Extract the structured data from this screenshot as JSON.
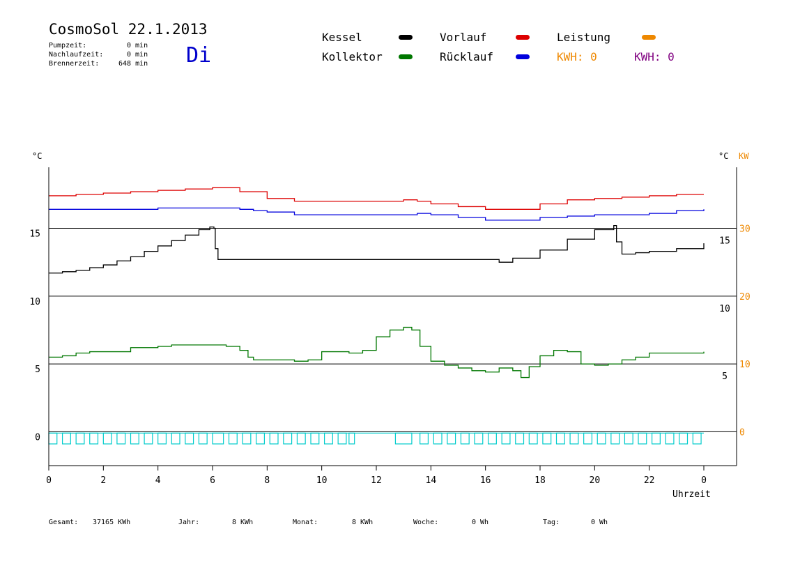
{
  "header": {
    "title": "CosmoSol 22.1.2013",
    "day": "Di",
    "stats": [
      {
        "label": "Pumpzeit:",
        "value": "0 min"
      },
      {
        "label": "Nachlaufzeit:",
        "value": "0 min"
      },
      {
        "label": "Brennerzeit:",
        "value": "648 min"
      }
    ]
  },
  "legend": {
    "kessel": "Kessel",
    "kollektor": "Kollektor",
    "vorlauf": "Vorlauf",
    "ruecklauf": "Rücklauf",
    "leistung": "Leistung",
    "kwh1": "KWH: 0",
    "kwh2": "KWH: 0"
  },
  "colors": {
    "kessel": "#000000",
    "kollektor": "#007700",
    "vorlauf": "#dd0000",
    "ruecklauf": "#0000dd",
    "leistung": "#ee8800",
    "kwh2": "#800080",
    "status": "#00cccc",
    "day": "#0000cc"
  },
  "footer": {
    "gesamt_label": "Gesamt:",
    "gesamt_value": "37165 KWh",
    "jahr_label": "Jahr:",
    "jahr_value": "8 KWh",
    "monat_label": "Monat:",
    "monat_value": "8 KWh",
    "woche_label": "Woche:",
    "woche_value": "0 Wh",
    "tag_label": "Tag:",
    "tag_value": "0 Wh"
  },
  "chart_data": {
    "type": "line",
    "xlabel": "Uhrzeit",
    "ylabel_left": "°C",
    "ylabel_right": "°C",
    "ylabel_right2": "KW",
    "xlim": [
      0,
      24
    ],
    "ylim": [
      -2.5,
      19.5
    ],
    "y2lim": [
      -5,
      39
    ],
    "x_ticks": [
      "0",
      "2",
      "4",
      "6",
      "8",
      "10",
      "12",
      "14",
      "16",
      "18",
      "20",
      "22",
      "0"
    ],
    "y_ticks_left": [
      "0",
      "5",
      "10",
      "15"
    ],
    "y_ticks_right": [
      "5",
      "10",
      "15"
    ],
    "y_ticks_right2": [
      "0",
      "10",
      "20",
      "30"
    ],
    "gridlines_y": [
      0,
      5,
      10,
      15
    ],
    "series": [
      {
        "name": "Vorlauf",
        "x": [
          0,
          1,
          2,
          3,
          4,
          5,
          6,
          6.6,
          7,
          8,
          9,
          10,
          12,
          13,
          13.5,
          14,
          15,
          16,
          17,
          18,
          19,
          20,
          21,
          22,
          23,
          24
        ],
        "y": [
          17.4,
          17.5,
          17.6,
          17.7,
          17.8,
          17.9,
          18.0,
          18.0,
          17.7,
          17.2,
          17.0,
          17.0,
          17.0,
          17.1,
          17.0,
          16.8,
          16.6,
          16.4,
          16.4,
          16.8,
          17.1,
          17.2,
          17.3,
          17.4,
          17.5,
          17.5
        ]
      },
      {
        "name": "Rücklauf",
        "x": [
          0,
          2,
          4,
          6,
          7,
          7.5,
          8,
          9,
          10,
          11,
          12,
          13,
          13.5,
          14,
          15,
          16,
          17,
          18,
          19,
          20,
          21,
          22,
          23,
          24
        ],
        "y": [
          16.4,
          16.4,
          16.5,
          16.5,
          16.4,
          16.3,
          16.2,
          16.0,
          16.0,
          16.0,
          16.0,
          16.0,
          16.1,
          16.0,
          15.8,
          15.6,
          15.6,
          15.8,
          15.9,
          16.0,
          16.0,
          16.1,
          16.3,
          16.4
        ]
      },
      {
        "name": "Kessel",
        "x": [
          0,
          0.5,
          1,
          1.5,
          2,
          2.5,
          3,
          3.5,
          4,
          4.5,
          5,
          5.5,
          5.9,
          6.05,
          6.1,
          6.2,
          7,
          10,
          14,
          16,
          16.5,
          17,
          18,
          19,
          20,
          20.7,
          20.8,
          21,
          21.5,
          22,
          23,
          24
        ],
        "y": [
          11.7,
          11.8,
          11.9,
          12.1,
          12.3,
          12.6,
          12.9,
          13.3,
          13.7,
          14.1,
          14.5,
          14.9,
          15.1,
          15.0,
          13.5,
          12.7,
          12.7,
          12.7,
          12.7,
          12.7,
          12.5,
          12.8,
          13.4,
          14.2,
          14.9,
          15.2,
          14.0,
          13.1,
          13.2,
          13.3,
          13.5,
          13.9
        ]
      },
      {
        "name": "Kollektor",
        "x": [
          0,
          0.5,
          1,
          1.5,
          2,
          2.5,
          3,
          3.5,
          4,
          4.5,
          5,
          5.5,
          6,
          6.5,
          7,
          7.3,
          7.5,
          8,
          8.5,
          9,
          9.5,
          10,
          10.5,
          11,
          11.5,
          12,
          12.5,
          13,
          13.3,
          13.6,
          14,
          14.5,
          15,
          15.5,
          16,
          16.5,
          17,
          17.3,
          17.6,
          18,
          18.5,
          19,
          19.5,
          20,
          20.5,
          21,
          21.5,
          22,
          22.5,
          23,
          23.5,
          24
        ],
        "y": [
          5.5,
          5.6,
          5.8,
          5.9,
          5.9,
          5.9,
          6.2,
          6.2,
          6.3,
          6.4,
          6.4,
          6.4,
          6.4,
          6.3,
          6.0,
          5.5,
          5.3,
          5.3,
          5.3,
          5.2,
          5.3,
          5.9,
          5.9,
          5.8,
          6.0,
          7.0,
          7.5,
          7.7,
          7.5,
          6.3,
          5.2,
          4.9,
          4.7,
          4.5,
          4.4,
          4.7,
          4.5,
          4.0,
          4.8,
          5.6,
          6.0,
          5.9,
          5.0,
          4.9,
          5.0,
          5.3,
          5.5,
          5.8,
          5.8,
          5.8,
          5.8,
          5.9
        ]
      }
    ],
    "status_bar": {
      "name": "Pumpe",
      "level": [
        -0.9,
        -0.1
      ],
      "pulse_starts": [
        0.0,
        0.5,
        1.0,
        1.5,
        2.0,
        2.5,
        3.0,
        3.5,
        4.0,
        4.5,
        5.0,
        5.5,
        6.0,
        6.6,
        7.1,
        7.6,
        8.1,
        8.6,
        9.1,
        9.6,
        10.1,
        10.6,
        11.0,
        12.7,
        13.6,
        14.1,
        14.6,
        15.1,
        15.6,
        16.1,
        16.6,
        17.1,
        17.6,
        18.1,
        18.6,
        19.1,
        19.6,
        20.1,
        20.6,
        21.1,
        21.6,
        22.1,
        22.6,
        23.1,
        23.6
      ],
      "pulse_widths": [
        0.3,
        0.3,
        0.3,
        0.3,
        0.3,
        0.3,
        0.3,
        0.3,
        0.3,
        0.3,
        0.3,
        0.3,
        0.4,
        0.3,
        0.3,
        0.3,
        0.3,
        0.3,
        0.3,
        0.3,
        0.3,
        0.3,
        0.2,
        0.6,
        0.3,
        0.3,
        0.3,
        0.3,
        0.3,
        0.3,
        0.3,
        0.3,
        0.3,
        0.3,
        0.3,
        0.3,
        0.3,
        0.3,
        0.3,
        0.3,
        0.3,
        0.3,
        0.3,
        0.3,
        0.3
      ]
    }
  }
}
